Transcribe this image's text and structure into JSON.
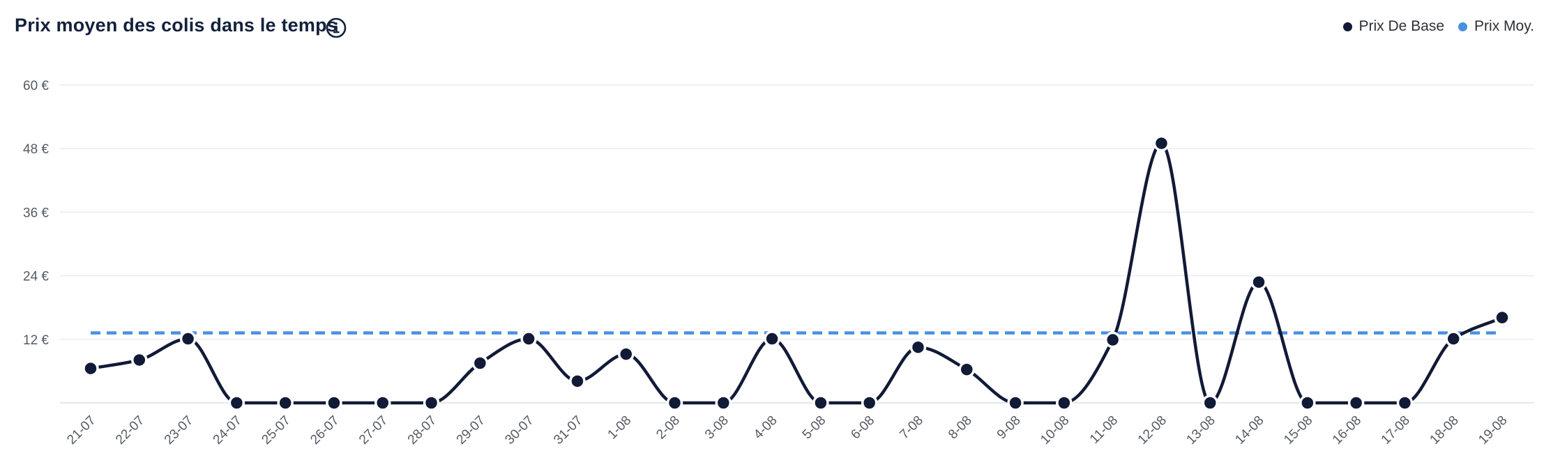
{
  "header": {
    "title": "Prix moyen des colis dans le temps",
    "info_icon": "info-circle-icon"
  },
  "legend": {
    "items": [
      {
        "label": "Prix De Base",
        "color": "#111a36"
      },
      {
        "label": "Prix Moy.",
        "color": "#4a90e2"
      }
    ]
  },
  "chart_data": {
    "type": "line",
    "title": "Prix moyen des colis dans le temps",
    "xlabel": "",
    "ylabel": "",
    "ylim": [
      0,
      60
    ],
    "yticks": [
      12,
      24,
      36,
      48,
      60
    ],
    "ytick_labels": [
      "12 €",
      "24 €",
      "36 €",
      "48 €",
      "60 €"
    ],
    "grid": true,
    "legend_position": "top-right",
    "categories": [
      "21-07",
      "22-07",
      "23-07",
      "24-07",
      "25-07",
      "26-07",
      "27-07",
      "28-07",
      "29-07",
      "30-07",
      "31-07",
      "1-08",
      "2-08",
      "3-08",
      "4-08",
      "5-08",
      "6-08",
      "7-08",
      "8-08",
      "9-08",
      "10-08",
      "11-08",
      "12-08",
      "13-08",
      "14-08",
      "15-08",
      "16-08",
      "17-08",
      "18-08",
      "19-08"
    ],
    "series": [
      {
        "name": "Prix De Base",
        "color": "#111a36",
        "style": "solid-smooth-with-markers",
        "values": [
          6.5,
          8.1,
          12.1,
          0,
          0,
          0,
          0,
          0,
          7.5,
          12.1,
          4.1,
          9.2,
          0,
          0,
          12.1,
          0,
          0,
          10.5,
          6.3,
          0,
          0,
          11.9,
          49.0,
          0,
          22.8,
          0,
          0,
          0,
          12.1,
          16.1
        ]
      },
      {
        "name": "Prix Moy.",
        "color": "#4a90e2",
        "style": "dashed",
        "values": [
          13.2,
          13.2,
          13.2,
          13.2,
          13.2,
          13.2,
          13.2,
          13.2,
          13.2,
          13.2,
          13.2,
          13.2,
          13.2,
          13.2,
          13.2,
          13.2,
          13.2,
          13.2,
          13.2,
          13.2,
          13.2,
          13.2,
          13.2,
          13.2,
          13.2,
          13.2,
          13.2,
          13.2,
          13.2,
          13.2
        ]
      }
    ]
  }
}
